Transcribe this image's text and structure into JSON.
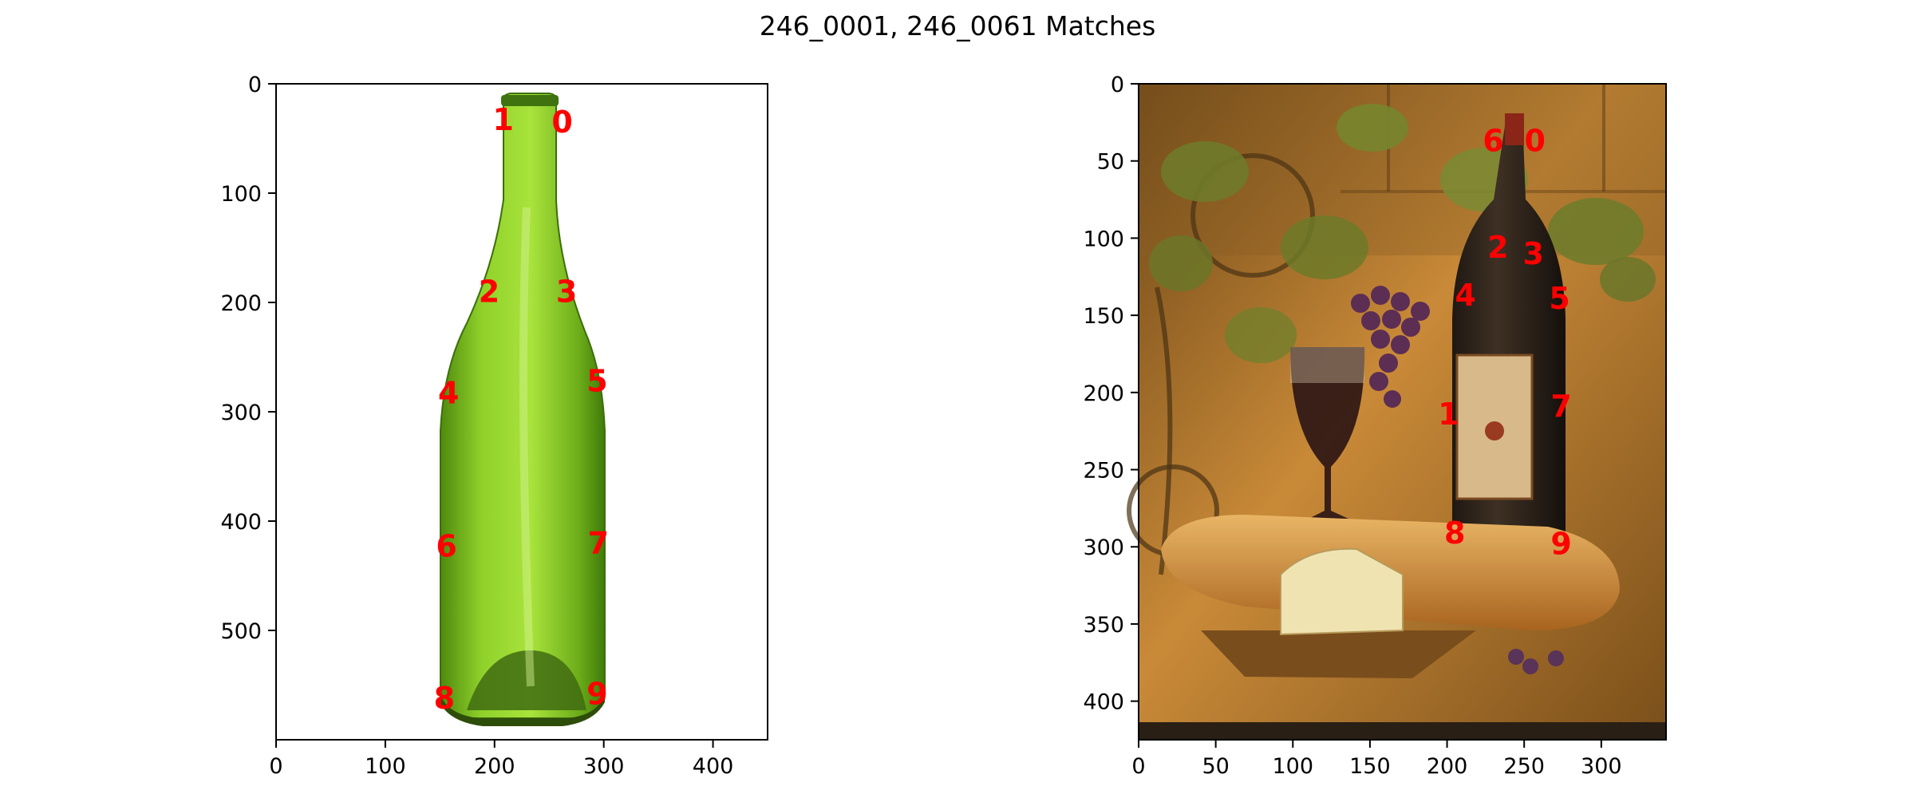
{
  "figure": {
    "title": "246_0001, 246_0061 Matches"
  },
  "chart_data": [
    {
      "type": "scatter",
      "name": "left-image",
      "image_size": [
        450,
        600
      ],
      "xlim": [
        0,
        450
      ],
      "ylim": [
        600,
        0
      ],
      "xticks": [
        0,
        100,
        200,
        300,
        400
      ],
      "yticks": [
        0,
        100,
        200,
        300,
        400,
        500
      ],
      "points": [
        {
          "label": "0",
          "x": 262,
          "y": 35
        },
        {
          "label": "1",
          "x": 208,
          "y": 33
        },
        {
          "label": "2",
          "x": 195,
          "y": 190
        },
        {
          "label": "3",
          "x": 266,
          "y": 190
        },
        {
          "label": "4",
          "x": 158,
          "y": 283
        },
        {
          "label": "5",
          "x": 294,
          "y": 272
        },
        {
          "label": "6",
          "x": 156,
          "y": 423
        },
        {
          "label": "7",
          "x": 295,
          "y": 420
        },
        {
          "label": "8",
          "x": 154,
          "y": 562
        },
        {
          "label": "9",
          "x": 294,
          "y": 558
        }
      ]
    },
    {
      "type": "scatter",
      "name": "right-image",
      "image_size": [
        342,
        425
      ],
      "xlim": [
        0,
        342
      ],
      "ylim": [
        425,
        0
      ],
      "xticks": [
        0,
        50,
        100,
        150,
        200,
        250,
        300
      ],
      "yticks": [
        0,
        50,
        100,
        150,
        200,
        250,
        300,
        350,
        400
      ],
      "points": [
        {
          "label": "0",
          "x": 257,
          "y": 37
        },
        {
          "label": "1",
          "x": 201,
          "y": 214
        },
        {
          "label": "2",
          "x": 233,
          "y": 106
        },
        {
          "label": "3",
          "x": 256,
          "y": 110
        },
        {
          "label": "4",
          "x": 212,
          "y": 137
        },
        {
          "label": "5",
          "x": 273,
          "y": 139
        },
        {
          "label": "6",
          "x": 230,
          "y": 37
        },
        {
          "label": "7",
          "x": 274,
          "y": 209
        },
        {
          "label": "8",
          "x": 205,
          "y": 291
        },
        {
          "label": "9",
          "x": 274,
          "y": 298
        }
      ]
    }
  ]
}
